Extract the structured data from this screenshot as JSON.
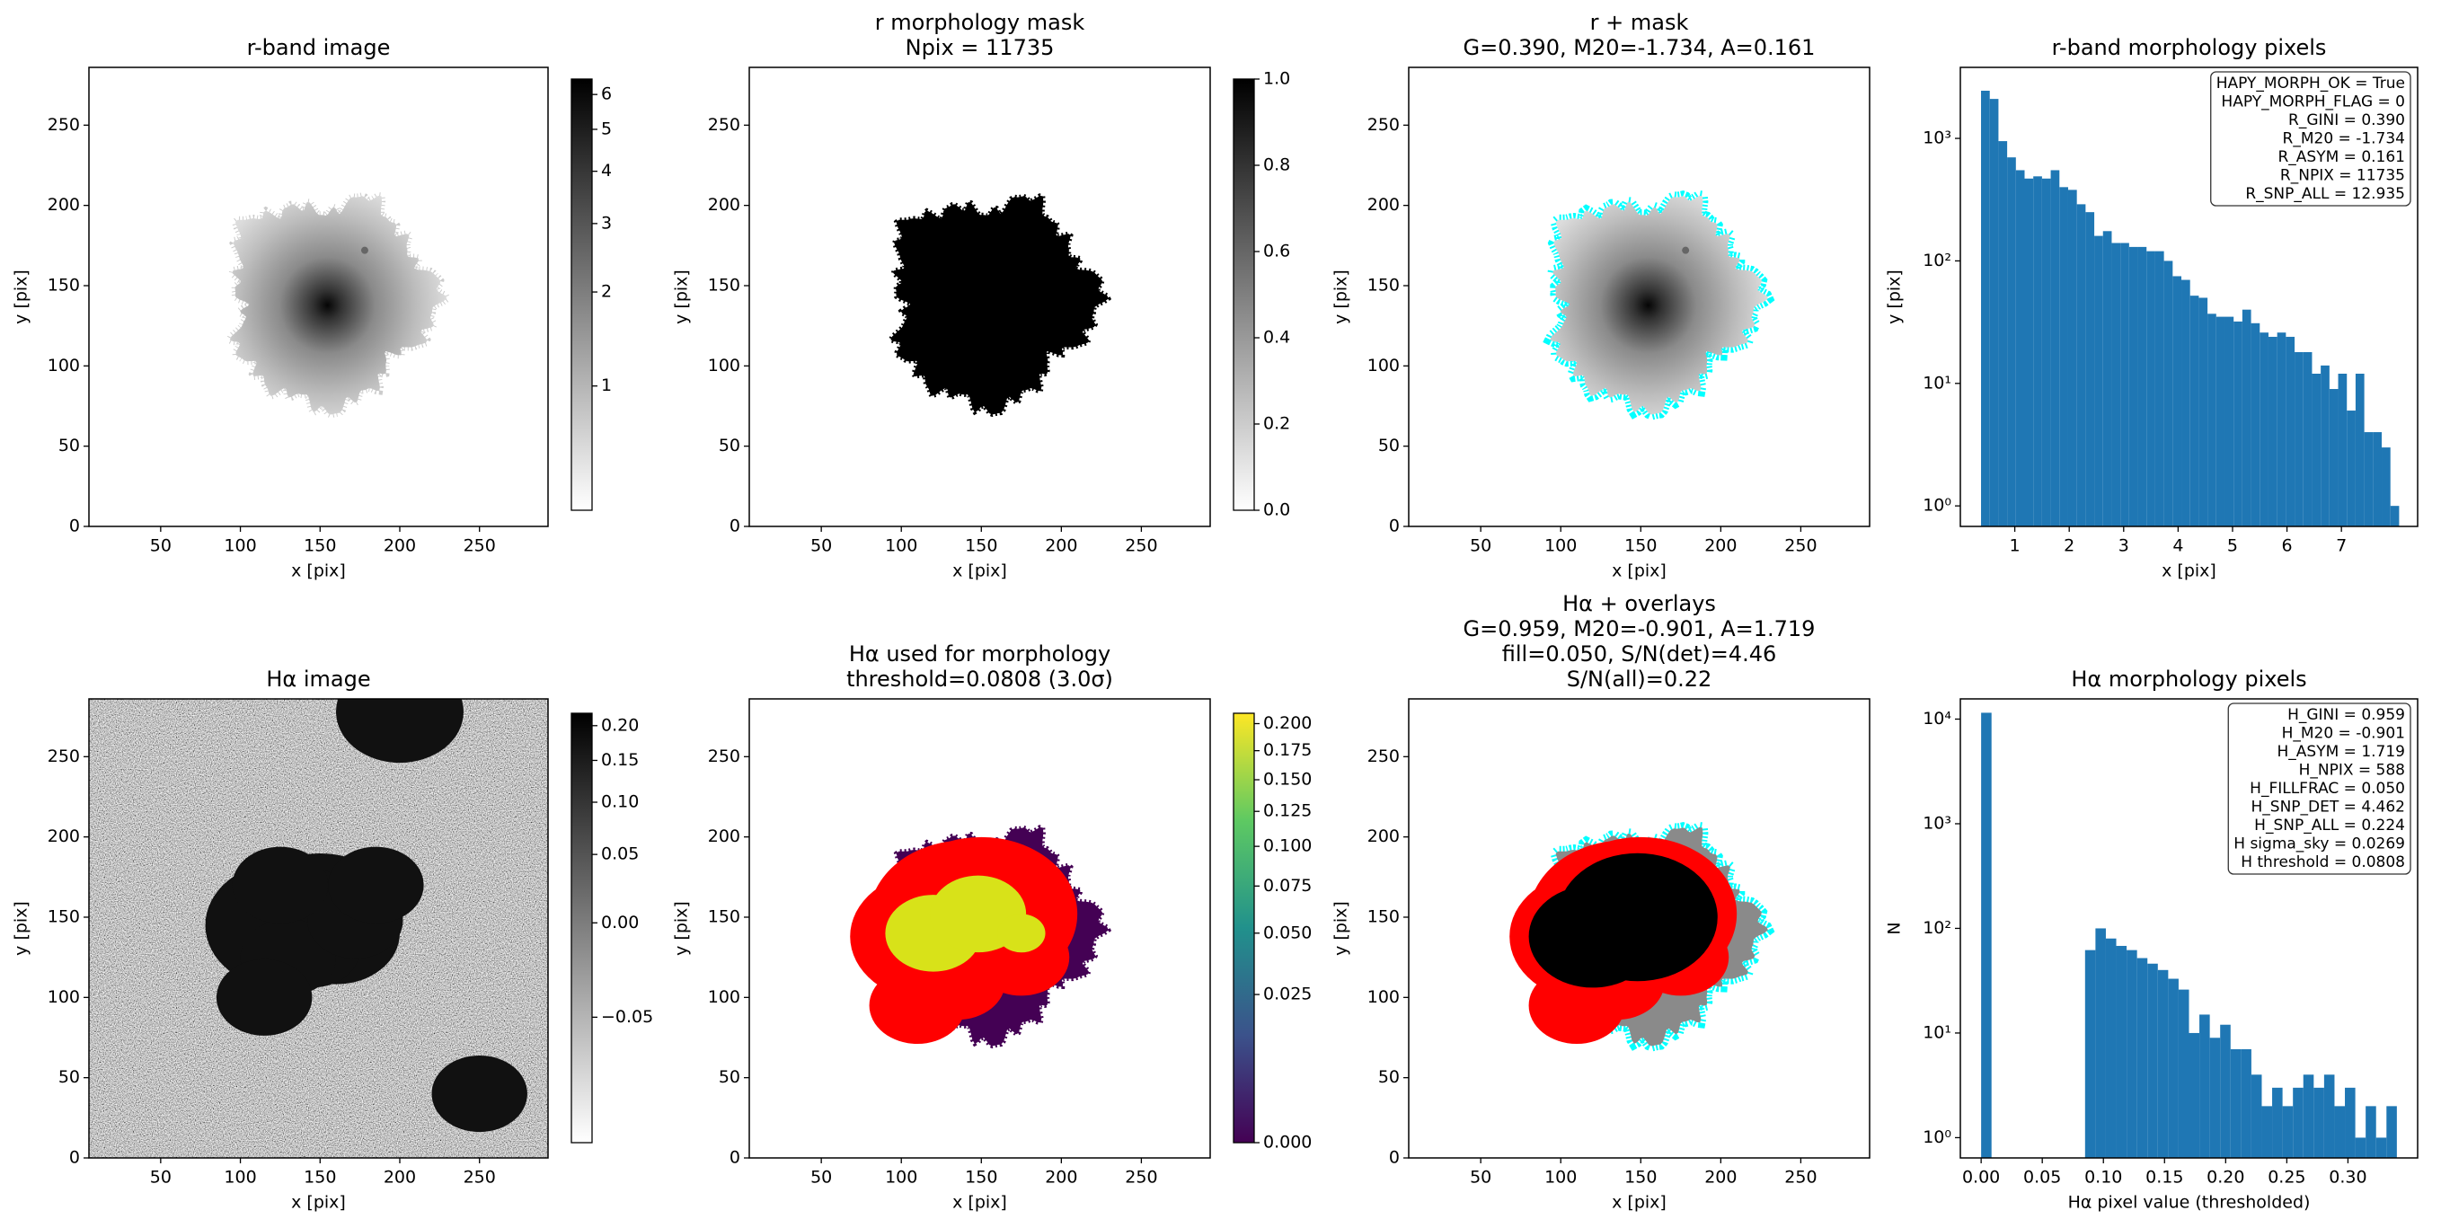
{
  "chart_data": [
    {
      "type": "image",
      "title": [
        "r-band image"
      ],
      "xlabel": "x [pix]",
      "ylabel": "y [pix]",
      "xlim": [
        5,
        293
      ],
      "ylim": [
        0,
        286
      ],
      "xticks": [
        50,
        100,
        150,
        200,
        250
      ],
      "yticks": [
        0,
        50,
        100,
        150,
        200,
        250
      ],
      "cmap": "gray_r",
      "colorbar": {
        "lim": [
          0,
          6.5
        ],
        "norm": "asinh",
        "ticks": [
          1,
          2,
          3,
          4,
          5,
          6
        ]
      }
    },
    {
      "type": "image",
      "title": [
        "r morphology mask",
        "Npix = 11735"
      ],
      "xlabel": "x [pix]",
      "ylabel": "y [pix]",
      "xlim": [
        5,
        293
      ],
      "ylim": [
        0,
        286
      ],
      "xticks": [
        50,
        100,
        150,
        200,
        250
      ],
      "yticks": [
        0,
        50,
        100,
        150,
        200,
        250
      ],
      "cmap": "binary",
      "colorbar": {
        "lim": [
          0,
          1
        ],
        "norm": "linear",
        "ticks": [
          {
            "value": 0,
            "label": "0.0"
          },
          0.2,
          0.4,
          0.6,
          0.8,
          {
            "value": 1,
            "label": "1.0"
          }
        ]
      }
    },
    {
      "type": "image",
      "title": [
        "r + mask",
        "G=0.390, M20=-1.734, A=0.161"
      ],
      "xlabel": "x [pix]",
      "ylabel": "y [pix]",
      "xlim": [
        5,
        293
      ],
      "ylim": [
        0,
        286
      ],
      "xticks": [
        50,
        100,
        150,
        200,
        250
      ],
      "yticks": [
        0,
        50,
        100,
        150,
        200,
        250
      ],
      "cmap": "gray_r",
      "overlay_colors": [
        "#00ffff"
      ]
    },
    {
      "type": "histogram",
      "title": [
        "r-band morphology pixels"
      ],
      "xlabel": "x [pix]",
      "ylabel": "y [pix]",
      "color": "#1f77b4",
      "log_y": true,
      "bins": [
        0.38,
        0.54,
        0.7,
        0.86,
        1.02,
        1.18,
        1.34,
        1.5,
        1.66,
        1.82,
        1.98,
        2.14,
        2.3,
        2.46,
        2.62,
        2.78,
        2.94,
        3.1,
        3.26,
        3.42,
        3.58,
        3.74,
        3.9,
        4.06,
        4.22,
        4.38,
        4.54,
        4.7,
        4.86,
        5.02,
        5.18,
        5.34,
        5.5,
        5.66,
        5.82,
        5.98,
        6.14,
        6.3,
        6.46,
        6.62,
        6.78,
        6.94,
        7.1,
        7.26,
        7.42,
        7.58,
        7.74,
        7.9,
        8.06
      ],
      "values": [
        2450,
        2100,
        950,
        700,
        550,
        470,
        490,
        470,
        550,
        400,
        380,
        290,
        250,
        160,
        175,
        140,
        140,
        130,
        130,
        120,
        120,
        100,
        75,
        70,
        52,
        50,
        37,
        35,
        35,
        32,
        40,
        31,
        26,
        24,
        26,
        24,
        18,
        18,
        12,
        14,
        9,
        12,
        6,
        12,
        4,
        4,
        3,
        1
      ],
      "xlim": [
        0,
        8.4
      ],
      "ylim": [
        0.68,
        3800
      ],
      "xticks": [
        1,
        2,
        3,
        4,
        5,
        6,
        7
      ],
      "yticks": [
        {
          "value": 1,
          "label": "10⁰"
        },
        {
          "value": 10,
          "label": "10¹"
        },
        {
          "value": 100,
          "label": "10²"
        },
        {
          "value": 1000,
          "label": "10³"
        }
      ],
      "annotation": [
        "HAPY_MORPH_OK = True",
        "HAPY_MORPH_FLAG = 0",
        "R_GINI = 0.390",
        "R_M20 = -1.734",
        "R_ASYM = 0.161",
        "R_NPIX = 11735",
        "R_SNP_ALL = 12.935"
      ]
    },
    {
      "type": "image",
      "title": [
        "Hα image"
      ],
      "xlabel": "x [pix]",
      "ylabel": "y [pix]",
      "xlim": [
        5,
        293
      ],
      "ylim": [
        0,
        286
      ],
      "xticks": [
        50,
        100,
        150,
        200,
        250
      ],
      "yticks": [
        0,
        50,
        100,
        150,
        200,
        250
      ],
      "cmap": "gray_r",
      "colorbar": {
        "lim": [
          -0.1,
          0.22
        ],
        "norm": "asinh",
        "ticks": [
          {
            "value": -0.05,
            "label": "−0.05"
          },
          {
            "value": 0,
            "label": "0.00"
          },
          0.05,
          {
            "value": 0.1,
            "label": "0.10"
          },
          0.15,
          {
            "value": 0.2,
            "label": "0.20"
          }
        ]
      }
    },
    {
      "type": "image",
      "title": [
        "Hα used for morphology",
        "threshold=0.0808 (3.0σ)"
      ],
      "xlabel": "x [pix]",
      "ylabel": "y [pix]",
      "xlim": [
        5,
        293
      ],
      "ylim": [
        0,
        286
      ],
      "xticks": [
        50,
        100,
        150,
        200,
        250
      ],
      "yticks": [
        0,
        50,
        100,
        150,
        200,
        250
      ],
      "cmap": "viridis",
      "overlay_colors": [
        "#ff0000"
      ],
      "colorbar": {
        "lim": [
          0,
          0.21
        ],
        "norm": "sqrt",
        "ticks": [
          {
            "value": 0,
            "label": "0.000"
          },
          0.025,
          {
            "value": 0.05,
            "label": "0.050"
          },
          0.075,
          {
            "value": 0.1,
            "label": "0.100"
          },
          0.125,
          {
            "value": 0.15,
            "label": "0.150"
          },
          0.175,
          {
            "value": 0.2,
            "label": "0.200"
          }
        ]
      }
    },
    {
      "type": "image",
      "title": [
        "Hα + overlays",
        "G=0.959, M20=-0.901, A=1.719",
        "fill=0.050, S/N(det)=4.46",
        "S/N(all)=0.22"
      ],
      "xlabel": "x [pix]",
      "ylabel": "y [pix]",
      "xlim": [
        5,
        293
      ],
      "ylim": [
        0,
        286
      ],
      "xticks": [
        50,
        100,
        150,
        200,
        250
      ],
      "yticks": [
        0,
        50,
        100,
        150,
        200,
        250
      ],
      "cmap": "gray_r",
      "overlay_colors": [
        "#00ffff",
        "#ff0000"
      ]
    },
    {
      "type": "histogram",
      "title": [
        "Hα morphology pixels"
      ],
      "xlabel": "Hα pixel value (thresholded)",
      "ylabel": "N",
      "color": "#1f77b4",
      "log_y": true,
      "bins": [
        0,
        0.0085,
        0.017,
        0.0255,
        0.034,
        0.0425,
        0.051,
        0.0595,
        0.068,
        0.0765,
        0.085,
        0.0935,
        0.102,
        0.1105,
        0.119,
        0.1275,
        0.136,
        0.1445,
        0.153,
        0.1615,
        0.17,
        0.1785,
        0.187,
        0.1955,
        0.204,
        0.2125,
        0.221,
        0.2295,
        0.238,
        0.2465,
        0.255,
        0.2635,
        0.272,
        0.2805,
        0.289,
        0.2975,
        0.306,
        0.3145,
        0.323,
        0.3315,
        0.34
      ],
      "values": [
        11500,
        0,
        0,
        0,
        0,
        0,
        0,
        0,
        0,
        0,
        62,
        100,
        80,
        68,
        62,
        52,
        46,
        40,
        33,
        26,
        10,
        15,
        9,
        12,
        7,
        7,
        4,
        2,
        3,
        2,
        3,
        4,
        3,
        4,
        2,
        3,
        1,
        2,
        1,
        2
      ],
      "xlim": [
        -0.017,
        0.357
      ],
      "ylim": [
        0.64,
        15600
      ],
      "xticks": [
        {
          "value": 0,
          "label": "0.00"
        },
        0.05,
        {
          "value": 0.1,
          "label": "0.10"
        },
        0.15,
        {
          "value": 0.2,
          "label": "0.20"
        },
        0.25,
        {
          "value": 0.3,
          "label": "0.30"
        }
      ],
      "yticks": [
        {
          "value": 1,
          "label": "10⁰"
        },
        {
          "value": 10,
          "label": "10¹"
        },
        {
          "value": 100,
          "label": "10²"
        },
        {
          "value": 1000,
          "label": "10³"
        },
        {
          "value": 10000,
          "label": "10⁴"
        }
      ],
      "annotation": [
        "H_GINI = 0.959",
        "H_M20 = -0.901",
        "H_ASYM = 1.719",
        "H_NPIX = 588",
        "H_FILLFRAC = 0.050",
        "H_SNP_DET = 4.462",
        "H_SNP_ALL = 0.224",
        "H sigma_sky = 0.0269",
        "H threshold = 0.0808"
      ]
    }
  ]
}
